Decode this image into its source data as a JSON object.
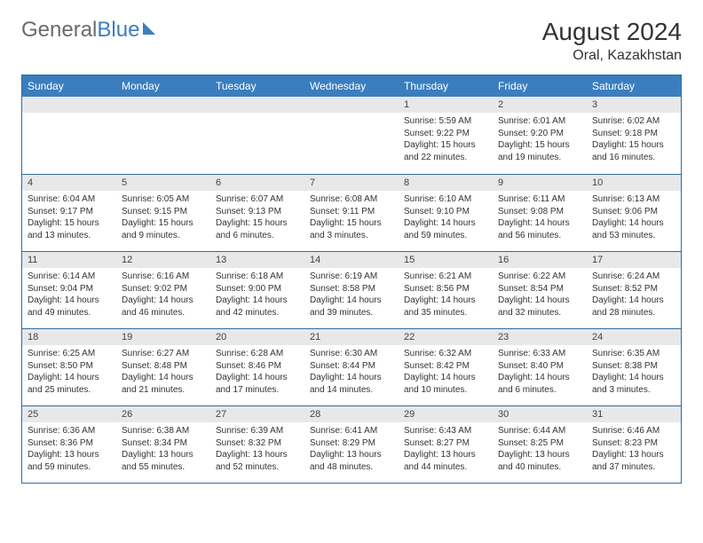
{
  "brand": {
    "part1": "General",
    "part2": "Blue"
  },
  "title": "August 2024",
  "location": "Oral, Kazakhstan",
  "colors": {
    "header_bg": "#3a7ebf",
    "border": "#2e6ca4",
    "daynum_bg": "#e8e8e8",
    "text": "#333333"
  },
  "weekdays": [
    "Sunday",
    "Monday",
    "Tuesday",
    "Wednesday",
    "Thursday",
    "Friday",
    "Saturday"
  ],
  "weeks": [
    [
      {
        "num": "",
        "sunrise": "",
        "sunset": "",
        "daylight": ""
      },
      {
        "num": "",
        "sunrise": "",
        "sunset": "",
        "daylight": ""
      },
      {
        "num": "",
        "sunrise": "",
        "sunset": "",
        "daylight": ""
      },
      {
        "num": "",
        "sunrise": "",
        "sunset": "",
        "daylight": ""
      },
      {
        "num": "1",
        "sunrise": "Sunrise: 5:59 AM",
        "sunset": "Sunset: 9:22 PM",
        "daylight": "Daylight: 15 hours and 22 minutes."
      },
      {
        "num": "2",
        "sunrise": "Sunrise: 6:01 AM",
        "sunset": "Sunset: 9:20 PM",
        "daylight": "Daylight: 15 hours and 19 minutes."
      },
      {
        "num": "3",
        "sunrise": "Sunrise: 6:02 AM",
        "sunset": "Sunset: 9:18 PM",
        "daylight": "Daylight: 15 hours and 16 minutes."
      }
    ],
    [
      {
        "num": "4",
        "sunrise": "Sunrise: 6:04 AM",
        "sunset": "Sunset: 9:17 PM",
        "daylight": "Daylight: 15 hours and 13 minutes."
      },
      {
        "num": "5",
        "sunrise": "Sunrise: 6:05 AM",
        "sunset": "Sunset: 9:15 PM",
        "daylight": "Daylight: 15 hours and 9 minutes."
      },
      {
        "num": "6",
        "sunrise": "Sunrise: 6:07 AM",
        "sunset": "Sunset: 9:13 PM",
        "daylight": "Daylight: 15 hours and 6 minutes."
      },
      {
        "num": "7",
        "sunrise": "Sunrise: 6:08 AM",
        "sunset": "Sunset: 9:11 PM",
        "daylight": "Daylight: 15 hours and 3 minutes."
      },
      {
        "num": "8",
        "sunrise": "Sunrise: 6:10 AM",
        "sunset": "Sunset: 9:10 PM",
        "daylight": "Daylight: 14 hours and 59 minutes."
      },
      {
        "num": "9",
        "sunrise": "Sunrise: 6:11 AM",
        "sunset": "Sunset: 9:08 PM",
        "daylight": "Daylight: 14 hours and 56 minutes."
      },
      {
        "num": "10",
        "sunrise": "Sunrise: 6:13 AM",
        "sunset": "Sunset: 9:06 PM",
        "daylight": "Daylight: 14 hours and 53 minutes."
      }
    ],
    [
      {
        "num": "11",
        "sunrise": "Sunrise: 6:14 AM",
        "sunset": "Sunset: 9:04 PM",
        "daylight": "Daylight: 14 hours and 49 minutes."
      },
      {
        "num": "12",
        "sunrise": "Sunrise: 6:16 AM",
        "sunset": "Sunset: 9:02 PM",
        "daylight": "Daylight: 14 hours and 46 minutes."
      },
      {
        "num": "13",
        "sunrise": "Sunrise: 6:18 AM",
        "sunset": "Sunset: 9:00 PM",
        "daylight": "Daylight: 14 hours and 42 minutes."
      },
      {
        "num": "14",
        "sunrise": "Sunrise: 6:19 AM",
        "sunset": "Sunset: 8:58 PM",
        "daylight": "Daylight: 14 hours and 39 minutes."
      },
      {
        "num": "15",
        "sunrise": "Sunrise: 6:21 AM",
        "sunset": "Sunset: 8:56 PM",
        "daylight": "Daylight: 14 hours and 35 minutes."
      },
      {
        "num": "16",
        "sunrise": "Sunrise: 6:22 AM",
        "sunset": "Sunset: 8:54 PM",
        "daylight": "Daylight: 14 hours and 32 minutes."
      },
      {
        "num": "17",
        "sunrise": "Sunrise: 6:24 AM",
        "sunset": "Sunset: 8:52 PM",
        "daylight": "Daylight: 14 hours and 28 minutes."
      }
    ],
    [
      {
        "num": "18",
        "sunrise": "Sunrise: 6:25 AM",
        "sunset": "Sunset: 8:50 PM",
        "daylight": "Daylight: 14 hours and 25 minutes."
      },
      {
        "num": "19",
        "sunrise": "Sunrise: 6:27 AM",
        "sunset": "Sunset: 8:48 PM",
        "daylight": "Daylight: 14 hours and 21 minutes."
      },
      {
        "num": "20",
        "sunrise": "Sunrise: 6:28 AM",
        "sunset": "Sunset: 8:46 PM",
        "daylight": "Daylight: 14 hours and 17 minutes."
      },
      {
        "num": "21",
        "sunrise": "Sunrise: 6:30 AM",
        "sunset": "Sunset: 8:44 PM",
        "daylight": "Daylight: 14 hours and 14 minutes."
      },
      {
        "num": "22",
        "sunrise": "Sunrise: 6:32 AM",
        "sunset": "Sunset: 8:42 PM",
        "daylight": "Daylight: 14 hours and 10 minutes."
      },
      {
        "num": "23",
        "sunrise": "Sunrise: 6:33 AM",
        "sunset": "Sunset: 8:40 PM",
        "daylight": "Daylight: 14 hours and 6 minutes."
      },
      {
        "num": "24",
        "sunrise": "Sunrise: 6:35 AM",
        "sunset": "Sunset: 8:38 PM",
        "daylight": "Daylight: 14 hours and 3 minutes."
      }
    ],
    [
      {
        "num": "25",
        "sunrise": "Sunrise: 6:36 AM",
        "sunset": "Sunset: 8:36 PM",
        "daylight": "Daylight: 13 hours and 59 minutes."
      },
      {
        "num": "26",
        "sunrise": "Sunrise: 6:38 AM",
        "sunset": "Sunset: 8:34 PM",
        "daylight": "Daylight: 13 hours and 55 minutes."
      },
      {
        "num": "27",
        "sunrise": "Sunrise: 6:39 AM",
        "sunset": "Sunset: 8:32 PM",
        "daylight": "Daylight: 13 hours and 52 minutes."
      },
      {
        "num": "28",
        "sunrise": "Sunrise: 6:41 AM",
        "sunset": "Sunset: 8:29 PM",
        "daylight": "Daylight: 13 hours and 48 minutes."
      },
      {
        "num": "29",
        "sunrise": "Sunrise: 6:43 AM",
        "sunset": "Sunset: 8:27 PM",
        "daylight": "Daylight: 13 hours and 44 minutes."
      },
      {
        "num": "30",
        "sunrise": "Sunrise: 6:44 AM",
        "sunset": "Sunset: 8:25 PM",
        "daylight": "Daylight: 13 hours and 40 minutes."
      },
      {
        "num": "31",
        "sunrise": "Sunrise: 6:46 AM",
        "sunset": "Sunset: 8:23 PM",
        "daylight": "Daylight: 13 hours and 37 minutes."
      }
    ]
  ]
}
